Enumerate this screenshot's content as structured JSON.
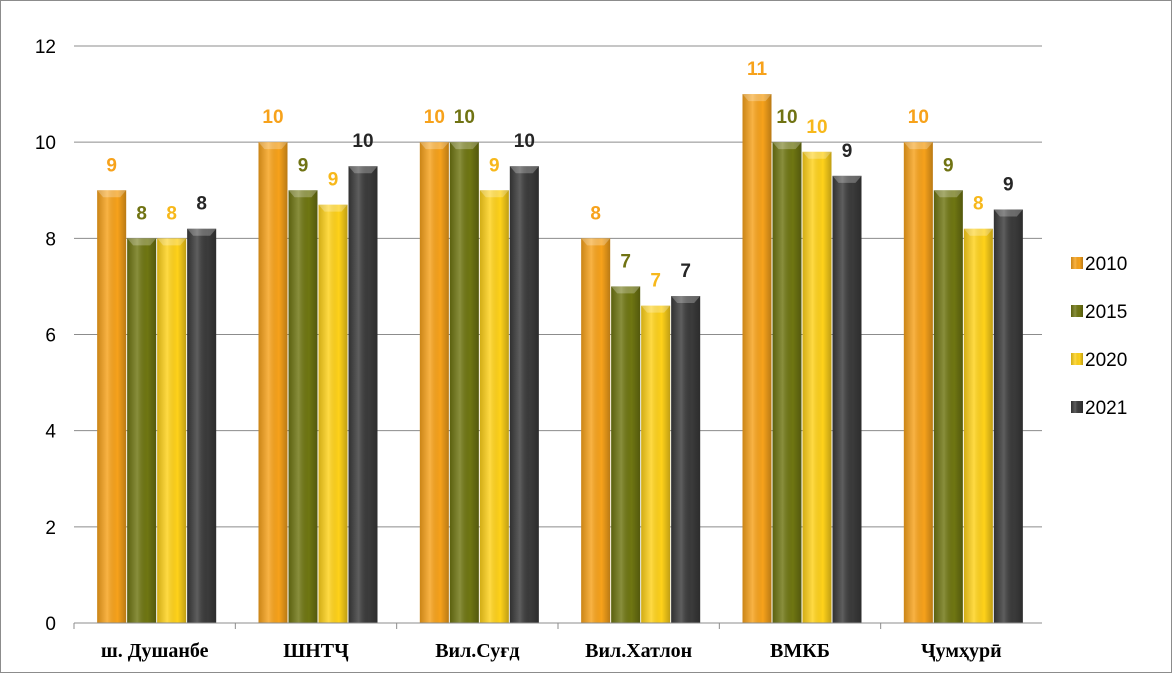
{
  "chart_data": {
    "type": "bar",
    "categories": [
      "ш. Душанбе",
      "ШНТҶ",
      "Вил.Суғд",
      "Вил.Хатлон",
      "ВМКБ",
      "Ҷумҳурӣ"
    ],
    "series": [
      {
        "name": "2010",
        "color": "#f7a21b",
        "values": [
          9.0,
          10.0,
          10.0,
          8.0,
          11.0,
          10.0
        ],
        "labels": [
          "9",
          "10",
          "10",
          "8",
          "11",
          "10"
        ],
        "label_color": "#f7a21b"
      },
      {
        "name": "2015",
        "color": "#6f7612",
        "values": [
          8.0,
          9.0,
          10.0,
          7.0,
          10.0,
          9.0
        ],
        "labels": [
          "8",
          "9",
          "10",
          "7",
          "10",
          "9"
        ],
        "label_color": "#707313"
      },
      {
        "name": "2020",
        "color": "#ffd21a",
        "values": [
          8.0,
          8.7,
          9.0,
          6.6,
          9.8,
          8.2
        ],
        "labels": [
          "8",
          "9",
          "9",
          "7",
          "10",
          "8"
        ],
        "label_color": "#f7b81b"
      },
      {
        "name": "2021",
        "color": "#3b3b3b",
        "values": [
          8.2,
          9.5,
          9.5,
          6.8,
          9.3,
          8.6
        ],
        "labels": [
          "8",
          "10",
          "10",
          "7",
          "9",
          "9"
        ],
        "label_color": "#262626"
      }
    ],
    "ylim": [
      0,
      12
    ],
    "yticks": [
      0,
      2,
      4,
      6,
      8,
      10,
      12
    ],
    "grid": true,
    "legend": "right"
  }
}
